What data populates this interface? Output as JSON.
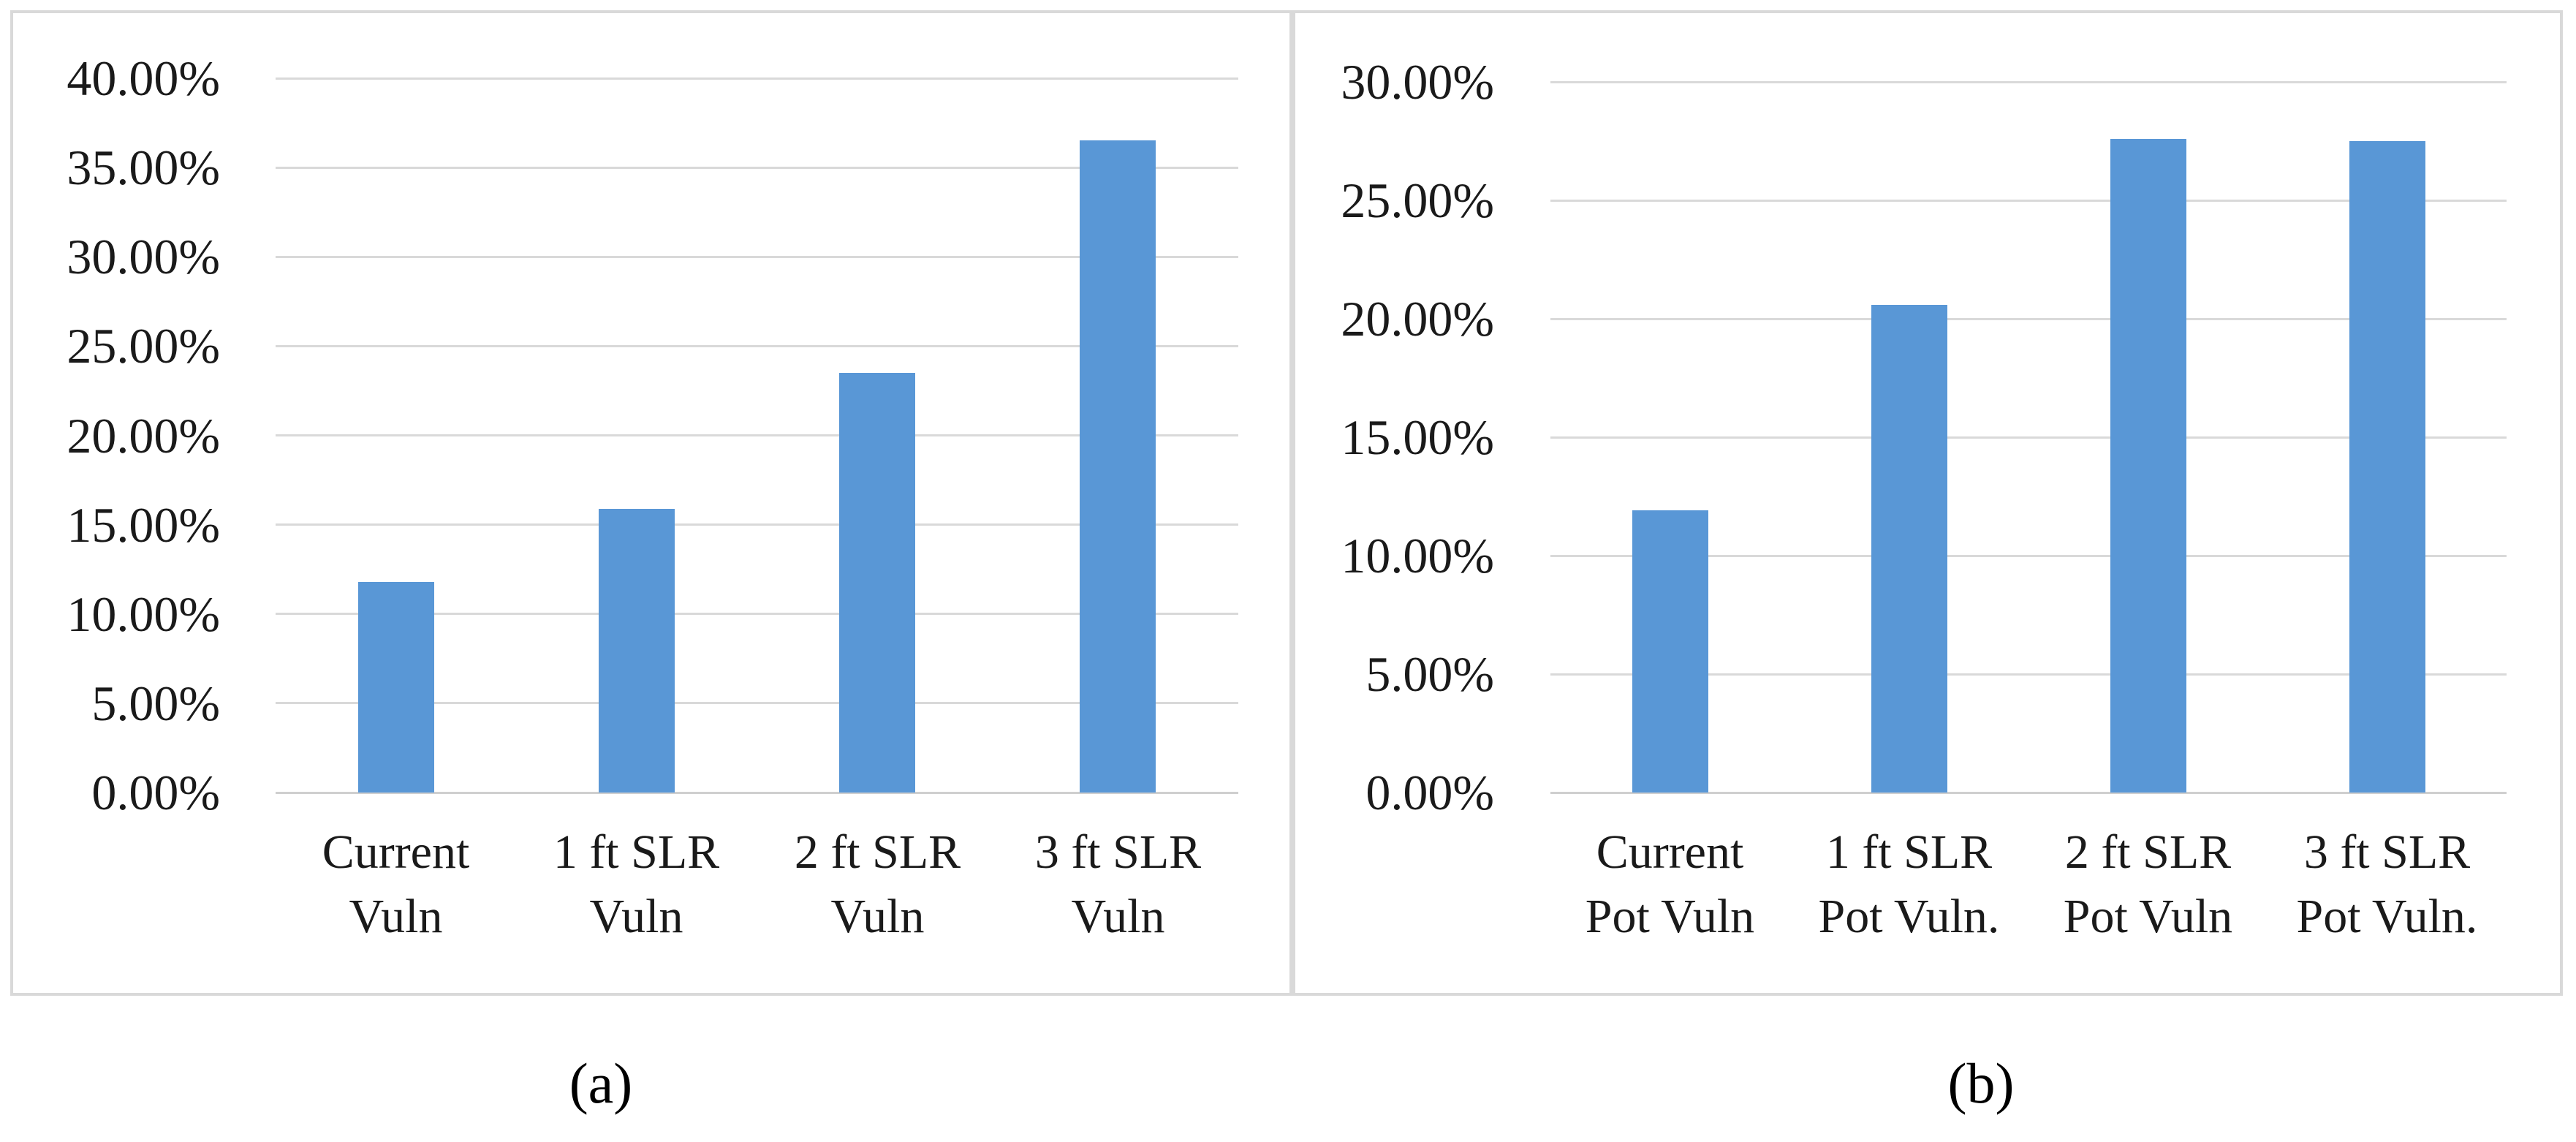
{
  "figure": {
    "caption_a": "(a)",
    "caption_b": "(b)",
    "bar_color": "#5997D6",
    "gridline_color": "#D9D9D9",
    "panel_border_color": "#D9D9D9",
    "text_color": "#1A1A1A",
    "background_color": "#FFFFFF"
  },
  "chart_data": [
    {
      "type": "bar",
      "panel": "a",
      "title": "",
      "xlabel": "",
      "ylabel": "",
      "categories": [
        [
          "Current",
          "Vuln"
        ],
        [
          "1 ft SLR",
          "Vuln"
        ],
        [
          "2 ft SLR",
          "Vuln"
        ],
        [
          "3 ft SLR",
          "Vuln"
        ]
      ],
      "values": [
        11.8,
        15.9,
        23.5,
        36.5
      ],
      "value_unit": "%",
      "ylim": [
        0,
        40
      ],
      "y_tick_step": 5,
      "y_tick_labels": [
        "40.00%",
        "35.00%",
        "30.00%",
        "25.00%",
        "20.00%",
        "15.00%",
        "10.00%",
        "5.00%",
        "0.00%"
      ],
      "grid": true,
      "legend_position": "none"
    },
    {
      "type": "bar",
      "panel": "b",
      "title": "",
      "xlabel": "",
      "ylabel": "",
      "categories": [
        [
          "Current",
          "Pot Vuln"
        ],
        [
          "1 ft SLR",
          "Pot Vuln."
        ],
        [
          "2 ft SLR",
          "Pot Vuln"
        ],
        [
          "3 ft SLR",
          "Pot Vuln."
        ]
      ],
      "values": [
        11.9,
        20.6,
        27.6,
        27.5
      ],
      "value_unit": "%",
      "ylim": [
        0,
        30
      ],
      "y_tick_step": 5,
      "y_tick_labels": [
        "30.00%",
        "25.00%",
        "20.00%",
        "15.00%",
        "10.00%",
        "5.00%",
        "0.00%"
      ],
      "grid": true,
      "legend_position": "none"
    }
  ]
}
